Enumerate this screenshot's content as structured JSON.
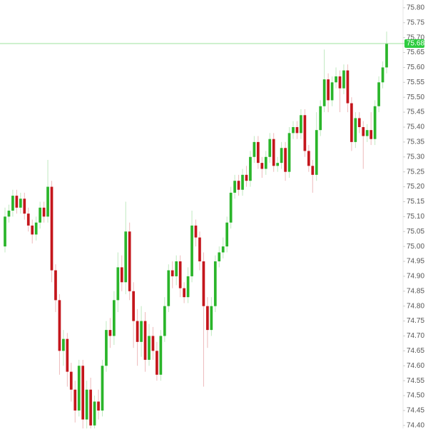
{
  "chart_data": {
    "type": "candlestick",
    "up_color": "#2ab52a",
    "down_color": "#c4161c",
    "grid": false,
    "ylim": [
      74.39,
      75.826
    ],
    "yticks": [
      {
        "value": 74.4,
        "label": "74.40"
      },
      74.45,
      {
        "value": 74.5,
        "label": "74.50"
      },
      74.55,
      {
        "value": 74.6,
        "label": "74.60"
      },
      74.65,
      {
        "value": 74.7,
        "label": "74.70"
      },
      74.75,
      {
        "value": 74.8,
        "label": "74.80"
      },
      74.85,
      {
        "value": 74.9,
        "label": "74.90"
      },
      74.95,
      {
        "value": 75.0,
        "label": "75.00"
      },
      75.05,
      {
        "value": 75.1,
        "label": "75.10"
      },
      75.15,
      {
        "value": 75.2,
        "label": "75.20"
      },
      75.25,
      {
        "value": 75.3,
        "label": "75.30"
      },
      75.35,
      {
        "value": 75.4,
        "label": "75.40"
      },
      75.45,
      {
        "value": 75.5,
        "label": "75.50"
      },
      75.55,
      {
        "value": 75.6,
        "label": "75.60"
      },
      75.65,
      {
        "value": 75.7,
        "label": "75.70"
      },
      75.75,
      {
        "value": 75.8,
        "label": "75.80"
      }
    ],
    "last_price": 75.68,
    "open": [
      75.0,
      75.1,
      75.12,
      75.17,
      75.13,
      75.16,
      75.11,
      75.07,
      75.04,
      75.08,
      75.13,
      75.1,
      75.2,
      74.92,
      74.82,
      74.65,
      74.69,
      74.58,
      74.52,
      74.45,
      74.6,
      74.42,
      74.52,
      74.4,
      74.48,
      74.45,
      74.6,
      74.72,
      74.7,
      74.82,
      74.93,
      74.88,
      75.05,
      74.85,
      74.75,
      74.68,
      74.75,
      74.62,
      74.7,
      74.65,
      74.57,
      74.7,
      74.8,
      74.92,
      74.9,
      74.95,
      74.86,
      74.83,
      74.9,
      75.07,
      75.03,
      74.95,
      74.8,
      74.72,
      74.8,
      74.95,
      74.98,
      75.0,
      75.08,
      75.18,
      75.22,
      75.19,
      75.24,
      75.22,
      75.3,
      75.35,
      75.28,
      75.26,
      75.3,
      75.36,
      75.27,
      75.28,
      75.33,
      75.25,
      75.38,
      75.4,
      75.38,
      75.44,
      75.32,
      75.27,
      75.24,
      75.39,
      75.47,
      75.56,
      75.49,
      75.55,
      75.57,
      75.53,
      75.59,
      75.48,
      75.35,
      75.43,
      75.4,
      75.37,
      75.39,
      75.36,
      75.47,
      75.55,
      75.6
    ],
    "high": [
      75.13,
      75.14,
      75.19,
      75.19,
      75.18,
      75.18,
      75.13,
      75.09,
      75.1,
      75.15,
      75.15,
      75.29,
      75.22,
      74.94,
      74.84,
      74.72,
      74.71,
      74.61,
      74.55,
      74.62,
      74.62,
      74.55,
      74.56,
      74.5,
      74.52,
      74.62,
      74.75,
      74.76,
      74.85,
      74.98,
      74.97,
      75.15,
      75.08,
      74.88,
      74.79,
      74.8,
      74.78,
      74.74,
      74.73,
      74.68,
      74.72,
      74.83,
      74.94,
      74.95,
      74.97,
      74.97,
      74.88,
      74.93,
      75.12,
      75.09,
      75.05,
      74.98,
      74.83,
      74.83,
      74.97,
      75.0,
      75.03,
      75.1,
      75.2,
      75.24,
      75.24,
      75.26,
      75.27,
      75.32,
      75.37,
      75.37,
      75.3,
      75.32,
      75.38,
      75.38,
      75.3,
      75.35,
      75.35,
      75.4,
      75.42,
      75.42,
      75.46,
      75.46,
      75.34,
      75.29,
      75.45,
      75.49,
      75.66,
      75.58,
      75.57,
      75.6,
      75.59,
      75.61,
      75.61,
      75.5,
      75.45,
      75.45,
      75.42,
      75.41,
      75.45,
      75.49,
      75.57,
      75.62,
      75.72
    ],
    "low": [
      74.98,
      75.08,
      75.1,
      75.11,
      75.11,
      75.09,
      75.05,
      75.01,
      75.02,
      75.06,
      75.08,
      75.08,
      74.88,
      74.78,
      74.57,
      74.6,
      74.53,
      74.48,
      74.41,
      74.43,
      74.38,
      74.38,
      74.37,
      74.38,
      74.42,
      74.43,
      74.58,
      74.66,
      74.67,
      74.78,
      74.85,
      74.84,
      74.82,
      74.66,
      74.6,
      74.63,
      74.58,
      74.6,
      74.62,
      74.55,
      74.55,
      74.68,
      74.78,
      74.86,
      74.87,
      74.83,
      74.81,
      74.81,
      74.88,
      75.0,
      74.92,
      74.53,
      74.66,
      74.7,
      74.78,
      74.93,
      74.96,
      74.98,
      75.06,
      75.16,
      75.17,
      75.17,
      75.2,
      75.2,
      75.28,
      75.26,
      75.23,
      75.24,
      75.28,
      75.25,
      75.25,
      75.26,
      75.22,
      75.23,
      75.36,
      75.36,
      75.36,
      75.3,
      75.25,
      75.18,
      75.22,
      75.37,
      75.45,
      75.45,
      75.47,
      75.53,
      75.45,
      75.51,
      75.45,
      75.32,
      75.33,
      75.38,
      75.26,
      75.35,
      75.34,
      75.34,
      75.45,
      75.53,
      75.58
    ],
    "close": [
      75.1,
      75.12,
      75.17,
      75.13,
      75.16,
      75.11,
      75.07,
      75.04,
      75.08,
      75.13,
      75.1,
      75.2,
      74.92,
      74.82,
      74.65,
      74.69,
      74.58,
      74.52,
      74.45,
      74.6,
      74.42,
      74.52,
      74.4,
      74.48,
      74.45,
      74.6,
      74.72,
      74.7,
      74.82,
      74.93,
      74.88,
      75.05,
      74.85,
      74.75,
      74.68,
      74.75,
      74.62,
      74.7,
      74.65,
      74.57,
      74.7,
      74.8,
      74.92,
      74.9,
      74.95,
      74.86,
      74.83,
      74.9,
      75.07,
      75.03,
      74.95,
      74.8,
      74.72,
      74.8,
      74.95,
      74.98,
      75.0,
      75.08,
      75.18,
      75.22,
      75.19,
      75.24,
      75.22,
      75.3,
      75.35,
      75.28,
      75.26,
      75.3,
      75.36,
      75.27,
      75.28,
      75.33,
      75.25,
      75.38,
      75.4,
      75.38,
      75.44,
      75.32,
      75.27,
      75.24,
      75.39,
      75.47,
      75.56,
      75.49,
      75.55,
      75.57,
      75.53,
      75.59,
      75.48,
      75.35,
      75.43,
      75.4,
      75.37,
      75.39,
      75.36,
      75.47,
      75.55,
      75.6,
      75.68
    ]
  }
}
